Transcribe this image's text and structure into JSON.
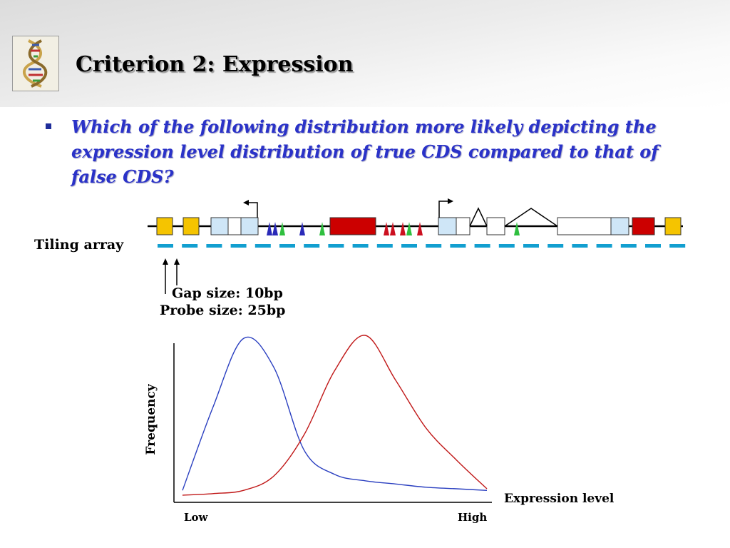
{
  "slide": {
    "title": "Criterion 2: Expression",
    "question": "Which of the following distribution more likely depicting the expression level distribution of true CDS compared to that of false CDS?"
  },
  "diagram": {
    "tiling_label": "Tiling array",
    "gap_label": "Gap size: 10bp",
    "probe_label": "Probe size: 25bp",
    "colors": {
      "utr_exon": "#f5c400",
      "cds_exon": "#cc0000",
      "light_exon": "#cfe6f7",
      "probe": "#129fd0",
      "marker_blue": "#2a2ab8",
      "marker_green": "#2fbf3f",
      "marker_red": "#cc1020"
    }
  },
  "chart_data": {
    "type": "line",
    "xlabel": "Expression level",
    "ylabel": "Frequency",
    "x_tick_labels": [
      "Low",
      "High"
    ],
    "x": [
      0,
      0.1,
      0.2,
      0.3,
      0.4,
      0.5,
      0.6,
      0.7,
      0.8,
      0.9,
      1.0
    ],
    "series": [
      {
        "color": "#2a3fc0",
        "values": [
          0.03,
          0.55,
          0.98,
          0.8,
          0.28,
          0.13,
          0.09,
          0.07,
          0.05,
          0.04,
          0.03
        ]
      },
      {
        "color": "#c01818",
        "values": [
          0.0,
          0.01,
          0.03,
          0.12,
          0.38,
          0.78,
          1.0,
          0.72,
          0.42,
          0.22,
          0.04
        ]
      }
    ]
  }
}
